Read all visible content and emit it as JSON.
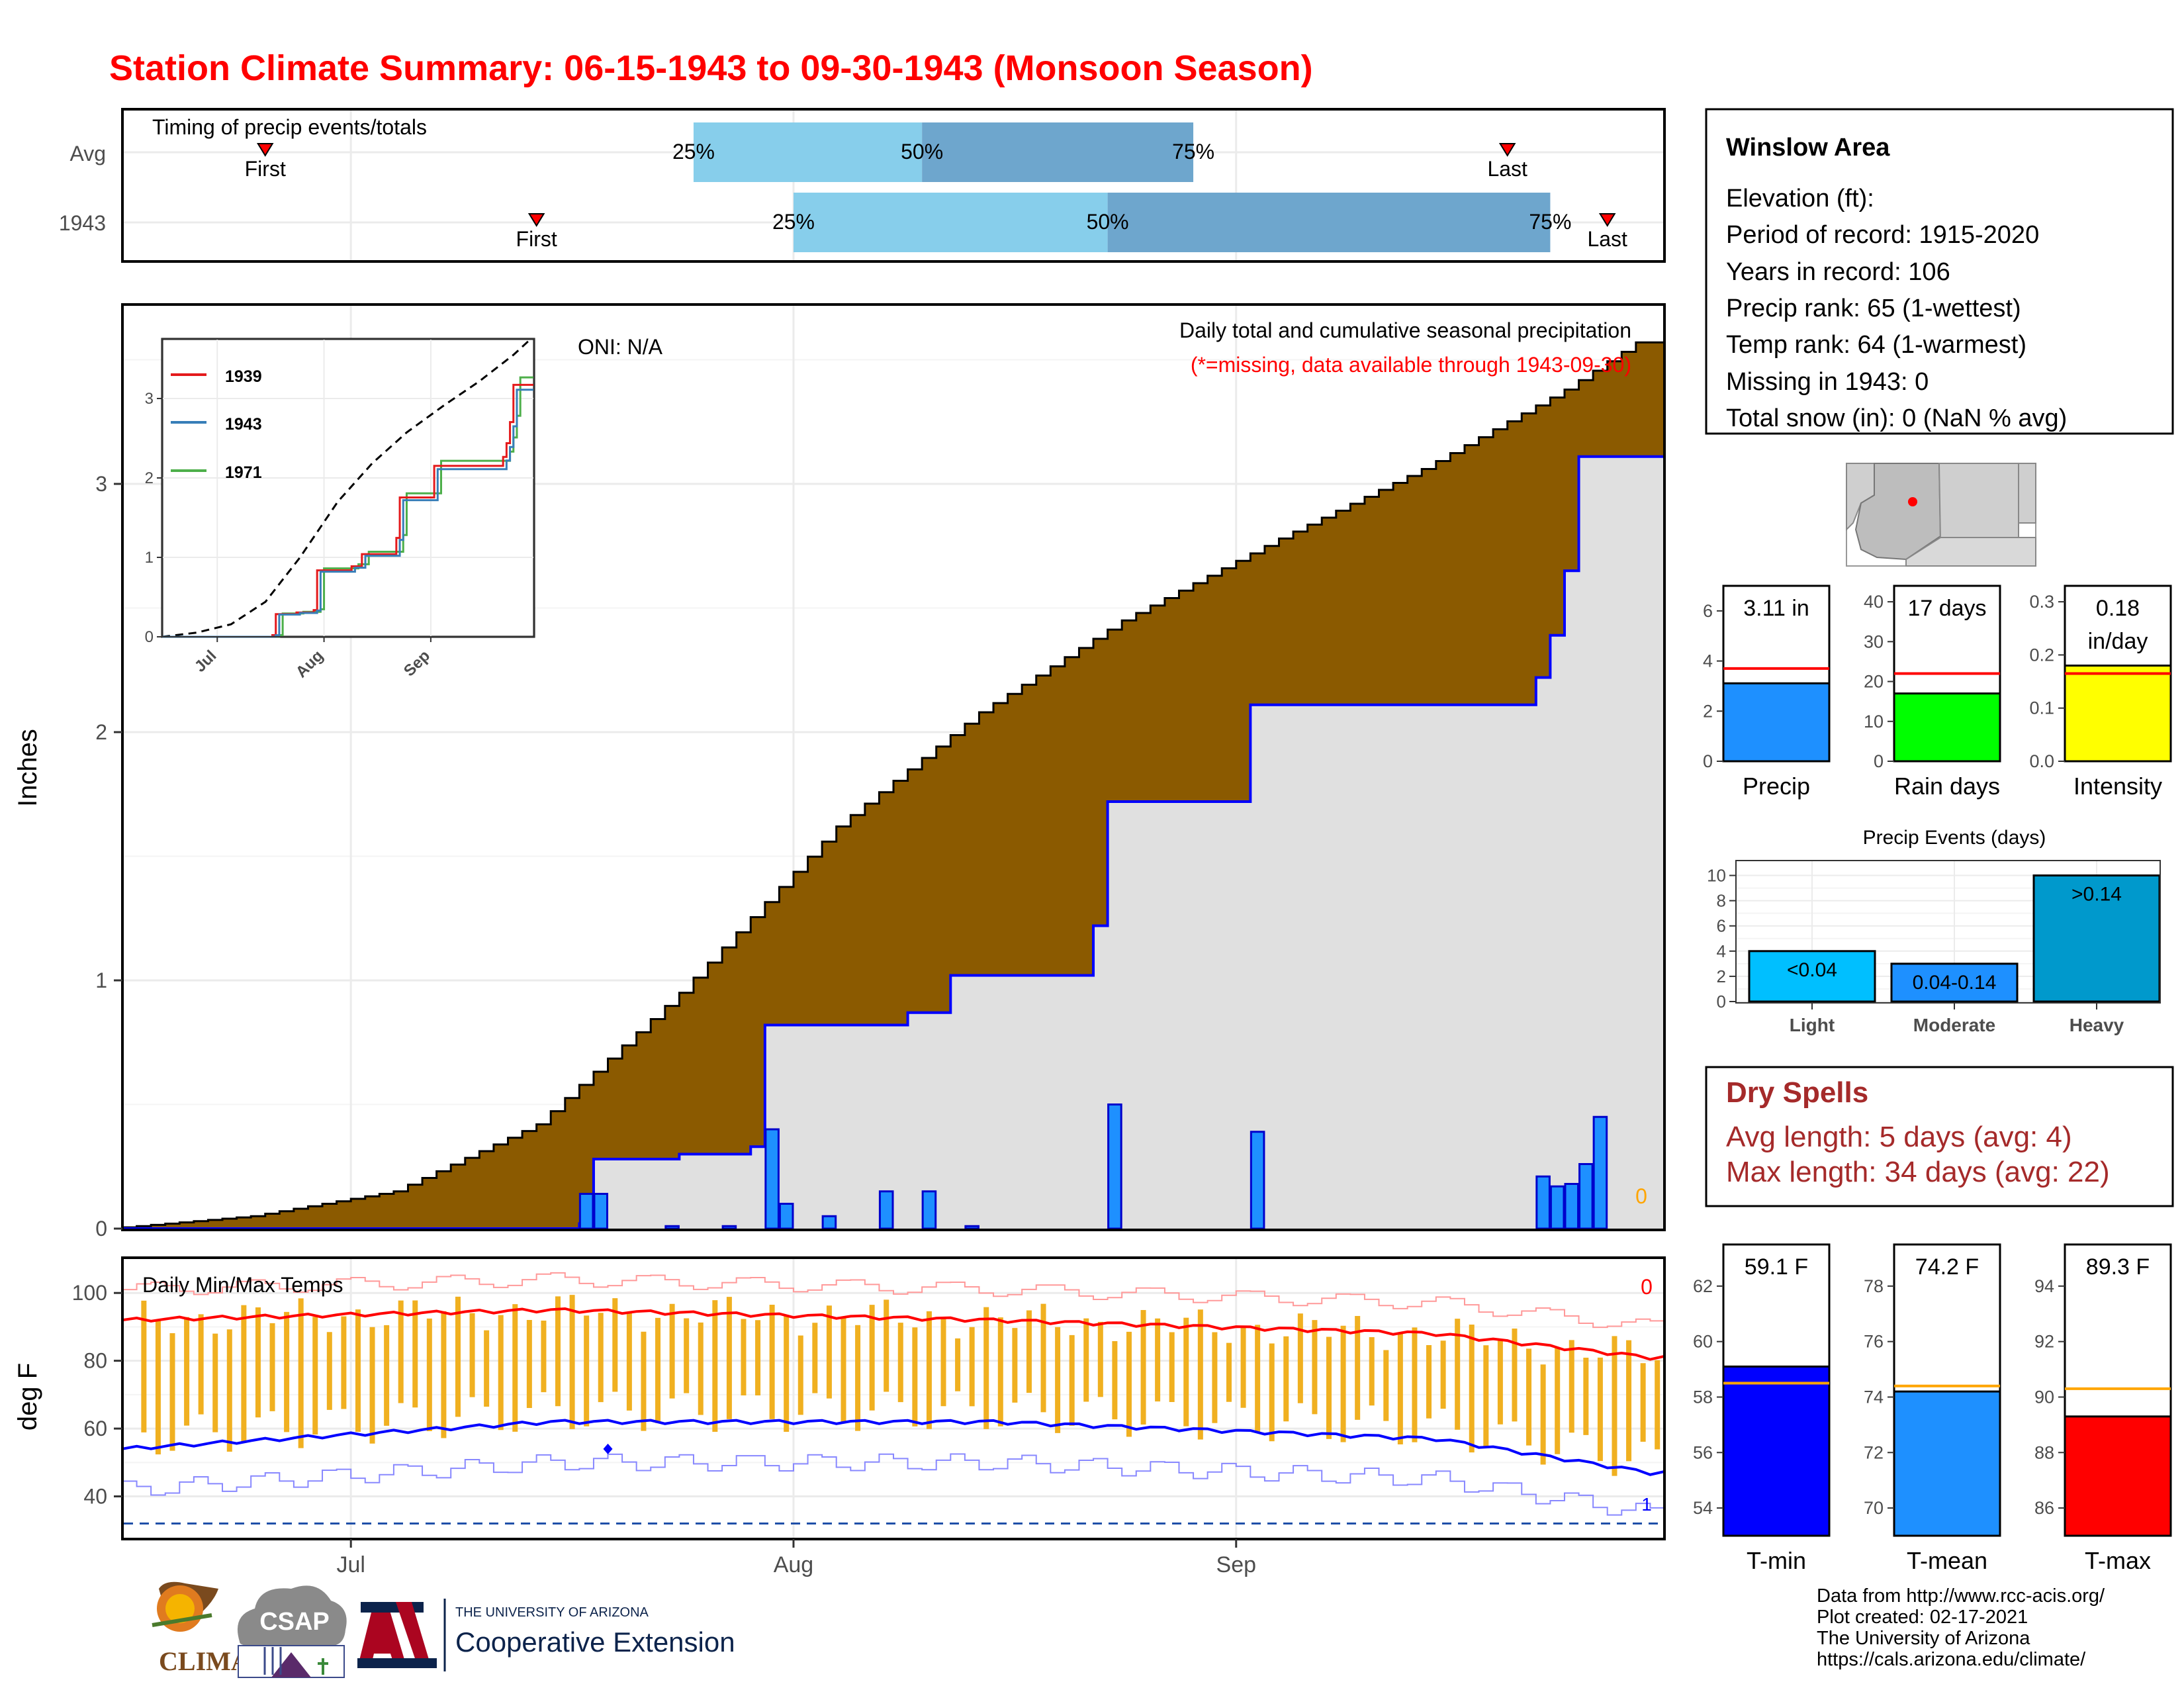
{
  "title": "Station Climate Summary: 06-15-1943 to 09-30-1943 (Monsoon Season)",
  "colors": {
    "title": "#ff0000",
    "quartile_light": "#87ceeb",
    "quartile_dark": "#6ea6cd",
    "cumulative_avg_fill": "#8b5a00",
    "observed_fill": "#e0e0e0",
    "observed_line": "#0000ff",
    "daily_bar": "#1e90ff",
    "temp_bar": "#f0b020",
    "avg_max_line": "#ff0000",
    "avg_min_line": "#0000ff"
  },
  "timing": {
    "label": "Timing of precip events/totals",
    "rows": [
      {
        "name": "Avg",
        "first_label": "First",
        "last_label": "Last",
        "first_day": 10,
        "last_day": 97,
        "q25_day": 40,
        "q50_day": 56,
        "q75_day": 75,
        "q25_label": "25%",
        "q50_label": "50%",
        "q75_label": "75%"
      },
      {
        "name": "1943",
        "first_label": "First",
        "last_label": "Last",
        "first_day": 29,
        "last_day": 104,
        "q25_day": 47,
        "q50_day": 69,
        "q75_day": 100,
        "q25_label": "25%",
        "q50_label": "50%",
        "q75_label": "75%"
      }
    ]
  },
  "precip_panel": {
    "ylabel": "Inches",
    "yticks": [
      "0",
      "1",
      "2",
      "3"
    ],
    "oni_label": "ONI: N/A",
    "subtitle": "Daily total and cumulative seasonal precipitation",
    "missing_note": "(*=missing, data available through 1943-09-30)",
    "missing_count": "0",
    "inset": {
      "yticks": [
        "0",
        "1",
        "2",
        "3"
      ],
      "xticks": [
        "Jul",
        "Aug",
        "Sep"
      ],
      "legend": [
        "1939",
        "1943",
        "1971"
      ]
    }
  },
  "temp_panel": {
    "label": "Daily Min/Max Temps",
    "ylabel": "deg F",
    "yticks": [
      "40",
      "60",
      "80",
      "100"
    ],
    "max_count": "0",
    "min_count": "1"
  },
  "xaxis": {
    "ticks": [
      "Jul",
      "Aug",
      "Sep"
    ]
  },
  "chart_data": [
    {
      "type": "line",
      "title": "Daily total and cumulative seasonal precipitation",
      "ylabel": "Inches",
      "ylim": [
        0,
        3.6
      ],
      "series": [
        {
          "name": "avg_cumulative",
          "x": [
            "06-15",
            "06-25",
            "07-05",
            "07-15",
            "07-25",
            "08-05",
            "08-15",
            "08-25",
            "09-05",
            "09-15",
            "09-25",
            "09-30"
          ],
          "values": [
            0.0,
            0.05,
            0.15,
            0.42,
            0.95,
            1.62,
            2.08,
            2.45,
            2.78,
            3.06,
            3.38,
            3.57
          ]
        },
        {
          "name": "1943_cumulative",
          "x": [
            "06-15",
            "07-18",
            "07-19",
            "07-25",
            "07-30",
            "07-31",
            "08-07",
            "08-10",
            "08-13",
            "08-23",
            "08-24",
            "09-03",
            "09-23",
            "09-24",
            "09-25",
            "09-26",
            "09-27",
            "09-30"
          ],
          "values": [
            0.0,
            0.02,
            0.28,
            0.3,
            0.33,
            0.82,
            0.82,
            0.87,
            1.02,
            1.22,
            1.72,
            2.11,
            2.22,
            2.39,
            2.65,
            3.11,
            3.11,
            3.11
          ]
        }
      ],
      "daily_bars": {
        "x": [
          "07-18",
          "07-19",
          "07-24",
          "07-28",
          "07-31",
          "08-01",
          "08-04",
          "08-08",
          "08-11",
          "08-14",
          "08-24",
          "09-03",
          "09-23",
          "09-24",
          "09-25",
          "09-26",
          "09-27"
        ],
        "values": [
          0.14,
          0.14,
          0.01,
          0.01,
          0.4,
          0.1,
          0.05,
          0.15,
          0.15,
          0.01,
          0.5,
          0.39,
          0.21,
          0.17,
          0.18,
          0.26,
          0.45
        ]
      }
    },
    {
      "type": "line",
      "title": "Daily Min/Max Temps",
      "ylabel": "deg F",
      "ylim": [
        28,
        110
      ],
      "series": [
        {
          "name": "avg_max",
          "x": [
            "06-15",
            "07-15",
            "08-15",
            "09-15",
            "09-30"
          ],
          "values": [
            92,
            95,
            92,
            88,
            81
          ]
        },
        {
          "name": "avg_min",
          "x": [
            "06-15",
            "07-15",
            "08-15",
            "09-15",
            "09-30"
          ],
          "values": [
            54,
            62,
            62,
            57,
            47
          ]
        }
      ]
    },
    {
      "type": "bar",
      "categories": [
        "Precip"
      ],
      "values": [
        3.11
      ],
      "avg": 3.7,
      "ylim": [
        0,
        7
      ],
      "label": "3.11 in"
    },
    {
      "type": "bar",
      "categories": [
        "Rain days"
      ],
      "values": [
        17
      ],
      "avg": 22,
      "ylim": [
        0,
        44
      ],
      "label": "17 days"
    },
    {
      "type": "bar",
      "categories": [
        "Intensity"
      ],
      "values": [
        0.18
      ],
      "avg": 0.165,
      "ylim": [
        0,
        0.33
      ],
      "label": "0.18 in/day"
    },
    {
      "type": "bar",
      "title": "Precip Events (days)",
      "categories": [
        "Light",
        "Moderate",
        "Heavy"
      ],
      "values": [
        4,
        3,
        10
      ],
      "labels": [
        "<0.04",
        "0.04-0.14",
        ">0.14"
      ],
      "ylim": [
        0,
        10.5
      ]
    },
    {
      "type": "bar",
      "categories": [
        "T-min"
      ],
      "values": [
        59.1
      ],
      "avg": 58.5,
      "ylim": [
        53,
        63.5
      ],
      "label": "59.1 F"
    },
    {
      "type": "bar",
      "categories": [
        "T-mean"
      ],
      "values": [
        74.2
      ],
      "avg": 74.4,
      "ylim": [
        69,
        79.5
      ],
      "label": "74.2 F"
    },
    {
      "type": "bar",
      "categories": [
        "T-max"
      ],
      "values": [
        89.3
      ],
      "avg": 90.3,
      "ylim": [
        85,
        95.5
      ],
      "label": "89.3 F"
    }
  ],
  "station_info": {
    "name": "Winslow Area",
    "lines": [
      "Elevation (ft):",
      "Period of record: 1915-2020",
      "Years in record: 106",
      "Precip rank: 65 (1-wettest)",
      "Temp rank: 64 (1-warmest)",
      "Missing in 1943: 0",
      "Total snow (in): 0 (NaN % avg)"
    ]
  },
  "summary_bars": {
    "precip": {
      "label": "3.11 in",
      "name": "Precip",
      "yticks": [
        "0",
        "2",
        "4",
        "6"
      ]
    },
    "raindays": {
      "label": "17 days",
      "name": "Rain days",
      "yticks": [
        "0",
        "10",
        "20",
        "30",
        "40"
      ]
    },
    "intensity": {
      "label_top": "0.18",
      "label_bottom": "in/day",
      "name": "Intensity",
      "yticks": [
        "0.0",
        "0.1",
        "0.2",
        "0.3"
      ]
    }
  },
  "events": {
    "title": "Precip Events (days)",
    "yticks": [
      "0",
      "2",
      "4",
      "6",
      "8",
      "10"
    ],
    "bars": [
      {
        "name": "Light",
        "label": "<0.04"
      },
      {
        "name": "Moderate",
        "label": "0.04-0.14"
      },
      {
        "name": "Heavy",
        "label": ">0.14"
      }
    ]
  },
  "dry_spells": {
    "title": "Dry Spells",
    "avg_length": "Avg length: 5 days (avg: 4)",
    "max_length": "Max length: 34 days (avg: 22)"
  },
  "temp_summary": {
    "tmin": {
      "label": "59.1 F",
      "name": "T-min",
      "yticks": [
        "54",
        "56",
        "58",
        "60",
        "62"
      ]
    },
    "tmean": {
      "label": "74.2 F",
      "name": "T-mean",
      "yticks": [
        "70",
        "72",
        "74",
        "76",
        "78"
      ]
    },
    "tmax": {
      "label": "89.3 F",
      "name": "T-max",
      "yticks": [
        "86",
        "88",
        "90",
        "92",
        "94"
      ]
    }
  },
  "footer": {
    "lines": [
      "Data from http://www.rcc-acis.org/",
      "Plot created: 02-17-2021",
      "The University of Arizona",
      "https://cals.arizona.edu/climate/"
    ],
    "logos": {
      "climas": "CLIMAS",
      "csap": "CSAP",
      "ua_line1": "THE UNIVERSITY OF ARIZONA",
      "ua_line2": "Cooperative Extension"
    }
  }
}
